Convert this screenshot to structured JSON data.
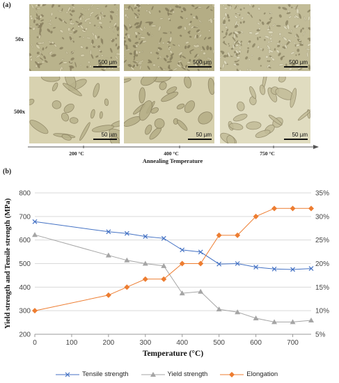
{
  "panel_a_label": "(a)",
  "panel_b_label": "(b)",
  "micrographs": {
    "row_labels": [
      "50x",
      "500x"
    ],
    "scale_labels": [
      [
        "500 µm",
        "500 µm",
        "500 µm"
      ],
      [
        "50 µm",
        "50 µm",
        "50 µm"
      ]
    ],
    "temperatures": [
      "200 °C",
      "400 °C",
      "750 °C"
    ],
    "axis_title": "Annealing Temperature"
  },
  "chart_data": {
    "type": "line",
    "xlabel": "Temperature (°C)",
    "ylabel": "Yield strength and Tensile strength (MPa)",
    "xlim": [
      0,
      750
    ],
    "ylim": [
      200,
      800
    ],
    "y2lim": [
      5,
      35
    ],
    "x_ticks": [
      "0",
      "100",
      "200",
      "300",
      "400",
      "500",
      "600",
      "700"
    ],
    "y_ticks": [
      "200",
      "300",
      "400",
      "500",
      "600",
      "700",
      "800"
    ],
    "y2_ticks": [
      "5%",
      "10%",
      "15%",
      "20%",
      "25%",
      "30%",
      "35%"
    ],
    "grid": "horizontal",
    "legend_position": "bottom",
    "series": [
      {
        "name": "Tensile strength",
        "axis": "left",
        "color": "#4472c4",
        "marker": "x",
        "x": [
          0,
          200,
          250,
          300,
          350,
          400,
          450,
          500,
          550,
          600,
          650,
          700,
          750
        ],
        "y": [
          678,
          635,
          628,
          615,
          607,
          558,
          549,
          498,
          500,
          485,
          477,
          475,
          479
        ]
      },
      {
        "name": "Yield strength",
        "axis": "left",
        "color": "#a5a5a5",
        "marker": "triangle",
        "x": [
          0,
          200,
          250,
          300,
          350,
          400,
          450,
          500,
          550,
          600,
          650,
          700,
          750
        ],
        "y": [
          622,
          535,
          514,
          500,
          490,
          374,
          381,
          306,
          294,
          268,
          252,
          252,
          259
        ]
      },
      {
        "name": "Elongation",
        "axis": "right",
        "color": "#ed7d31",
        "marker": "diamond",
        "x": [
          0,
          200,
          250,
          300,
          350,
          400,
          450,
          500,
          550,
          600,
          650,
          700,
          750
        ],
        "y": [
          10,
          13.3,
          15,
          16.7,
          16.7,
          20,
          20,
          26,
          26,
          30,
          31.7,
          31.7,
          31.7
        ]
      }
    ]
  }
}
